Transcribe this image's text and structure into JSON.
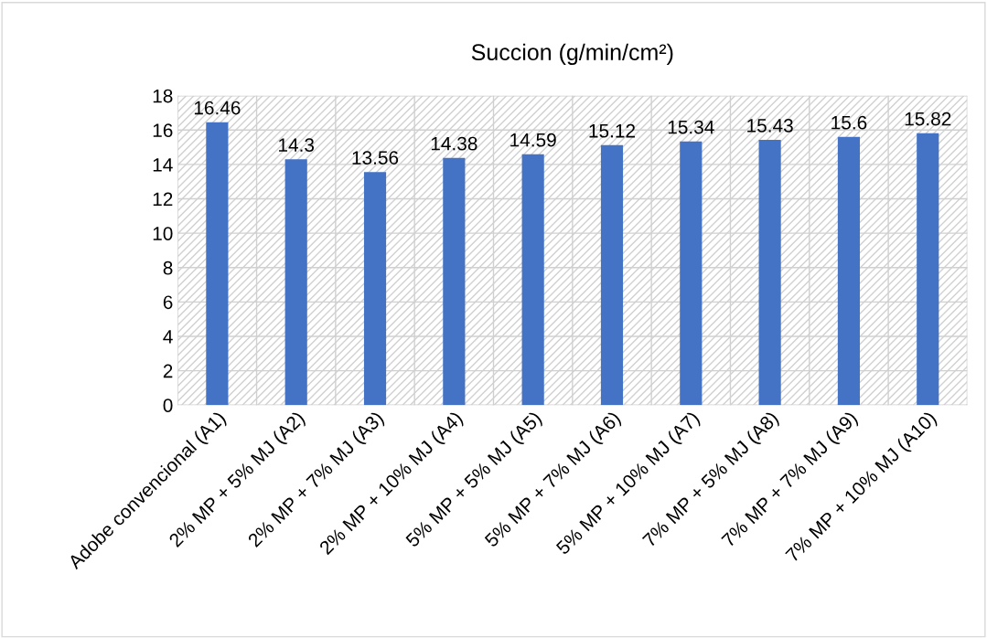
{
  "chart_data": {
    "type": "bar",
    "title": "Succion (g/min/cm²)",
    "categories": [
      "Adobe convencional (A1)",
      "2% MP + 5% MJ (A2)",
      "2% MP + 7% MJ (A3)",
      "2% MP + 10% MJ (A4)",
      "5% MP + 5% MJ (A5)",
      "5% MP + 7% MJ (A6)",
      "5% MP + 10% MJ (A7)",
      "7% MP + 5% MJ (A8)",
      "7% MP + 7% MJ (A9)",
      "7% MP + 10% MJ (A10)"
    ],
    "values": [
      16.46,
      14.3,
      13.56,
      14.38,
      14.59,
      15.12,
      15.34,
      15.43,
      15.6,
      15.82
    ],
    "color": "#4472c4",
    "ylim": [
      0,
      18
    ],
    "yticks": [
      0,
      2,
      4,
      6,
      8,
      10,
      12,
      14,
      16,
      18
    ],
    "grid": true,
    "data_labels": true
  }
}
